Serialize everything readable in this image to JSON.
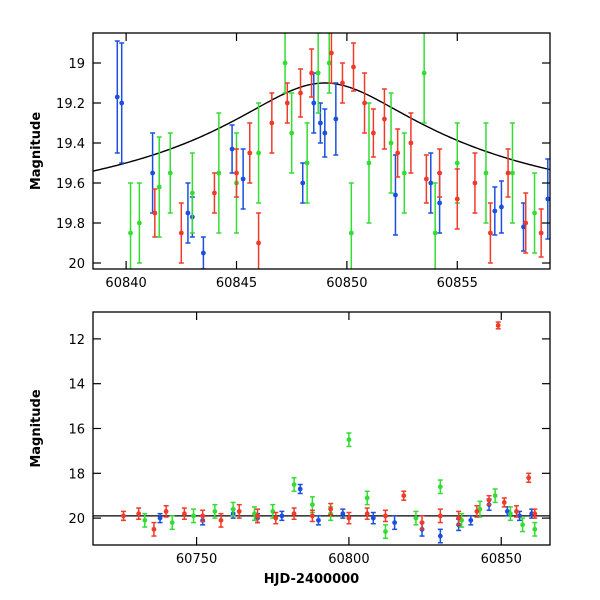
{
  "colors": {
    "blue": "#1a4fe0",
    "green": "#33dd33",
    "red": "#f03a2a",
    "model": "#000000"
  },
  "chart_data": [
    {
      "type": "scatter",
      "panel": "top",
      "title": "",
      "xlabel": "",
      "ylabel": "Magnitude",
      "xlim": [
        60838.5,
        60859.2
      ],
      "ylim": [
        20.03,
        18.85
      ],
      "y_inverted": true,
      "xticks": [
        60840,
        60845,
        60850,
        60855
      ],
      "yticks": [
        19,
        19.2,
        19.4,
        19.6,
        19.8,
        20
      ],
      "xtick_labels": [
        "60840",
        "60845",
        "60850",
        "60855"
      ],
      "ytick_labels": [
        "19",
        "19.2",
        "19.4",
        "19.6",
        "19.8",
        "20"
      ],
      "grid": false,
      "model_curve": {
        "type": "line",
        "peak_x": 60849.0,
        "peak_mag": 19.1,
        "baseline_mag": 19.88
      },
      "series": [
        {
          "color": "blue",
          "points": [
            [
              60839.6,
              19.17,
              0.28
            ],
            [
              60839.8,
              19.2,
              0.3
            ],
            [
              60841.2,
              19.55,
              0.2
            ],
            [
              60842.8,
              19.75,
              0.15
            ],
            [
              60843.0,
              19.77,
              0.1
            ],
            [
              60843.5,
              19.95,
              0.08
            ],
            [
              60844.8,
              19.43,
              0.12
            ],
            [
              60845.3,
              19.58,
              0.15
            ],
            [
              60848.0,
              19.6,
              0.1
            ],
            [
              60848.5,
              19.2,
              0.15
            ],
            [
              60848.8,
              19.3,
              0.1
            ],
            [
              60849.0,
              19.35,
              0.12
            ],
            [
              60849.5,
              19.28,
              0.18
            ],
            [
              60852.2,
              19.66,
              0.2
            ],
            [
              60853.8,
              19.6,
              0.15
            ],
            [
              60854.2,
              19.7,
              0.15
            ],
            [
              60856.7,
              19.74,
              0.12
            ],
            [
              60857.0,
              19.72,
              0.13
            ],
            [
              60858.0,
              19.82,
              0.12
            ],
            [
              60859.1,
              19.68,
              0.2
            ]
          ]
        },
        {
          "color": "green",
          "points": [
            [
              60840.2,
              19.85,
              0.25
            ],
            [
              60840.6,
              19.8,
              0.2
            ],
            [
              60841.5,
              19.62,
              0.25
            ],
            [
              60842.0,
              19.55,
              0.2
            ],
            [
              60843.0,
              19.65,
              0.2
            ],
            [
              60844.2,
              19.55,
              0.3
            ],
            [
              60845.0,
              19.6,
              0.25
            ],
            [
              60846.0,
              19.45,
              0.25
            ],
            [
              60847.2,
              19.0,
              0.15
            ],
            [
              60847.5,
              19.35,
              0.2
            ],
            [
              60848.2,
              19.5,
              0.2
            ],
            [
              60848.7,
              19.05,
              0.2
            ],
            [
              60849.2,
              19.0,
              0.15
            ],
            [
              60850.2,
              19.85,
              0.25
            ],
            [
              60851.0,
              19.5,
              0.3
            ],
            [
              60852.0,
              19.4,
              0.25
            ],
            [
              60852.6,
              19.55,
              0.2
            ],
            [
              60853.5,
              19.05,
              0.25
            ],
            [
              60854.0,
              19.85,
              0.25
            ],
            [
              60855.0,
              19.5,
              0.2
            ],
            [
              60856.3,
              19.55,
              0.25
            ],
            [
              60857.5,
              19.55,
              0.25
            ],
            [
              60858.5,
              19.75,
              0.2
            ]
          ]
        },
        {
          "color": "red",
          "points": [
            [
              60841.3,
              19.75,
              0.12
            ],
            [
              60842.5,
              19.85,
              0.15
            ],
            [
              60844.0,
              19.65,
              0.1
            ],
            [
              60845.0,
              19.55,
              0.12
            ],
            [
              60845.6,
              19.45,
              0.15
            ],
            [
              60846.0,
              19.9,
              0.15
            ],
            [
              60846.6,
              19.3,
              0.15
            ],
            [
              60847.3,
              19.2,
              0.1
            ],
            [
              60847.9,
              19.15,
              0.12
            ],
            [
              60848.4,
              19.05,
              0.12
            ],
            [
              60849.3,
              18.95,
              0.15
            ],
            [
              60849.8,
              19.1,
              0.1
            ],
            [
              60850.3,
              19.02,
              0.12
            ],
            [
              60850.8,
              19.2,
              0.15
            ],
            [
              60851.2,
              19.35,
              0.12
            ],
            [
              60851.7,
              19.28,
              0.15
            ],
            [
              60852.3,
              19.45,
              0.12
            ],
            [
              60852.9,
              19.4,
              0.15
            ],
            [
              60853.6,
              19.58,
              0.12
            ],
            [
              60854.2,
              19.55,
              0.12
            ],
            [
              60855.0,
              19.68,
              0.15
            ],
            [
              60855.8,
              19.6,
              0.15
            ],
            [
              60856.5,
              19.85,
              0.15
            ],
            [
              60857.3,
              19.55,
              0.12
            ],
            [
              60858.1,
              19.8,
              0.15
            ],
            [
              60858.8,
              19.85,
              0.12
            ]
          ]
        }
      ]
    },
    {
      "type": "scatter",
      "panel": "bottom",
      "title": "",
      "xlabel": "HJD-2400000",
      "ylabel": "Magnitude",
      "xlim": [
        60716,
        60866
      ],
      "ylim": [
        21.2,
        10.8
      ],
      "y_inverted": true,
      "xticks": [
        60750,
        60800,
        60850
      ],
      "yticks": [
        12,
        14,
        16,
        18,
        20
      ],
      "xtick_labels": [
        "60750",
        "60800",
        "60850"
      ],
      "ytick_labels": [
        "12",
        "14",
        "16",
        "18",
        "20"
      ],
      "grid": false,
      "baseline_mag": 19.9,
      "series": [
        {
          "color": "blue",
          "points": [
            [
              60738,
              20.0,
              0.2
            ],
            [
              60752,
              20.1,
              0.2
            ],
            [
              60762,
              19.8,
              0.2
            ],
            [
              60770,
              20.0,
              0.2
            ],
            [
              60778,
              19.9,
              0.2
            ],
            [
              60784,
              18.7,
              0.2
            ],
            [
              60790,
              20.1,
              0.2
            ],
            [
              60798,
              19.8,
              0.2
            ],
            [
              60808,
              20.0,
              0.25
            ],
            [
              60815,
              20.2,
              0.3
            ],
            [
              60824,
              20.5,
              0.3
            ],
            [
              60830,
              20.8,
              0.3
            ],
            [
              60836,
              20.3,
              0.25
            ],
            [
              60840,
              20.1,
              0.2
            ],
            [
              60846,
              19.4,
              0.25
            ],
            [
              60852,
              19.7,
              0.2
            ],
            [
              60856,
              19.9,
              0.2
            ],
            [
              60860,
              19.8,
              0.2
            ]
          ]
        },
        {
          "color": "green",
          "points": [
            [
              60733,
              20.1,
              0.3
            ],
            [
              60742,
              20.2,
              0.3
            ],
            [
              60749,
              19.9,
              0.3
            ],
            [
              60756,
              19.7,
              0.3
            ],
            [
              60762,
              19.6,
              0.3
            ],
            [
              60769,
              19.8,
              0.3
            ],
            [
              60775,
              19.7,
              0.3
            ],
            [
              60782,
              18.5,
              0.3
            ],
            [
              60788,
              19.4,
              0.35
            ],
            [
              60794,
              19.8,
              0.3
            ],
            [
              60800,
              16.5,
              0.3
            ],
            [
              60806,
              19.1,
              0.3
            ],
            [
              60812,
              20.6,
              0.3
            ],
            [
              60822,
              20.0,
              0.3
            ],
            [
              60830,
              18.6,
              0.3
            ],
            [
              60837,
              20.1,
              0.3
            ],
            [
              60843,
              19.6,
              0.35
            ],
            [
              60848,
              19.0,
              0.3
            ],
            [
              60853,
              19.8,
              0.3
            ],
            [
              60857,
              20.3,
              0.3
            ],
            [
              60861,
              20.5,
              0.3
            ]
          ]
        },
        {
          "color": "red",
          "points": [
            [
              60726,
              19.9,
              0.2
            ],
            [
              60731,
              19.8,
              0.25
            ],
            [
              60736,
              20.5,
              0.3
            ],
            [
              60740,
              19.7,
              0.25
            ],
            [
              60746,
              19.8,
              0.25
            ],
            [
              60752,
              19.9,
              0.25
            ],
            [
              60758,
              20.1,
              0.3
            ],
            [
              60764,
              19.7,
              0.3
            ],
            [
              60770,
              19.9,
              0.3
            ],
            [
              60776,
              20.0,
              0.25
            ],
            [
              60782,
              19.8,
              0.25
            ],
            [
              60788,
              19.9,
              0.25
            ],
            [
              60794,
              19.6,
              0.25
            ],
            [
              60800,
              20.0,
              0.25
            ],
            [
              60806,
              19.8,
              0.25
            ],
            [
              60812,
              19.9,
              0.25
            ],
            [
              60818,
              19.0,
              0.2
            ],
            [
              60824,
              20.2,
              0.3
            ],
            [
              60830,
              19.9,
              0.3
            ],
            [
              60836,
              20.0,
              0.3
            ],
            [
              60842,
              19.7,
              0.25
            ],
            [
              60846,
              19.2,
              0.2
            ],
            [
              60849,
              11.4,
              0.15
            ],
            [
              60851,
              19.3,
              0.2
            ],
            [
              60855,
              19.7,
              0.25
            ],
            [
              60859,
              18.2,
              0.2
            ],
            [
              60861,
              19.8,
              0.2
            ]
          ]
        }
      ]
    }
  ]
}
